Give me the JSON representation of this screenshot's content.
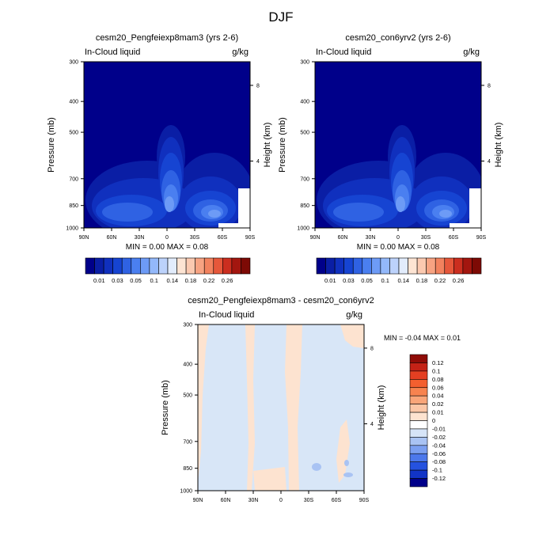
{
  "figure": {
    "title": "DJF"
  },
  "xticks": [
    "90N",
    "60N",
    "30N",
    "0",
    "30S",
    "60S",
    "90S"
  ],
  "pressure_ticks": [
    "300",
    "400",
    "500",
    "700",
    "850",
    "1000"
  ],
  "height_ticks": [
    "8",
    "4"
  ],
  "left_axis_label": "Pressure (mb)",
  "right_axis_label": "Height (km)",
  "top_left_label": "In-Cloud liquid",
  "top_right_label": "g/kg",
  "chart_data": [
    {
      "type": "heatmap",
      "title": "cesm20_Pengfeiexp8mam3 (yrs 2-6)",
      "minmax": "MIN =   0.00   MAX =   0.08",
      "levels": [
        "0.01",
        "0.03",
        "0.05",
        "0.1",
        "0.14",
        "0.18",
        "0.22",
        "0.26"
      ],
      "colors": [
        "#00008a",
        "#0a1ea5",
        "#1030be",
        "#1644d2",
        "#2f62e3",
        "#4a7ff0",
        "#6d9bf6",
        "#93b8fa",
        "#bcd2fb",
        "#e2ecfc",
        "#fde4d3",
        "#fbc9b0",
        "#f7a382",
        "#f2825e",
        "#e6573a",
        "#cb2e1f",
        "#a3160f",
        "#7d0a05"
      ],
      "grid": false
    },
    {
      "type": "heatmap",
      "title": "cesm20_con6yrv2 (yrs 2-6)",
      "minmax": "MIN =   0.00   MAX =   0.08",
      "levels": [
        "0.01",
        "0.03",
        "0.05",
        "0.1",
        "0.14",
        "0.18",
        "0.22",
        "0.26"
      ],
      "colors": [
        "#00008a",
        "#0a1ea5",
        "#1030be",
        "#1644d2",
        "#2f62e3",
        "#4a7ff0",
        "#6d9bf6",
        "#93b8fa",
        "#bcd2fb",
        "#e2ecfc",
        "#fde4d3",
        "#fbc9b0",
        "#f7a382",
        "#f2825e",
        "#e6573a",
        "#cb2e1f",
        "#a3160f",
        "#7d0a05"
      ],
      "grid": false
    },
    {
      "type": "heatmap",
      "title": "cesm20_Pengfeiexp8mam3 - cesm20_con6yrv2",
      "minmax": "MIN =  -0.04  MAX =   0.01",
      "levels": [
        "0.12",
        "0.1",
        "0.08",
        "0.06",
        "0.04",
        "0.02",
        "0.01",
        "0",
        "-0.01",
        "-0.02",
        "-0.04",
        "-0.06",
        "-0.08",
        "-0.1",
        "-0.12"
      ],
      "colors": [
        "#8f0c07",
        "#c42216",
        "#e43f22",
        "#f35f2f",
        "#f7834f",
        "#f9a579",
        "#fbc6a6",
        "#fde3d0",
        "#ffffff",
        "#d6e4f7",
        "#a9c3f3",
        "#7b9ff0",
        "#4c78eb",
        "#2552df",
        "#1234c7",
        "#00008a"
      ],
      "grid": false
    }
  ]
}
